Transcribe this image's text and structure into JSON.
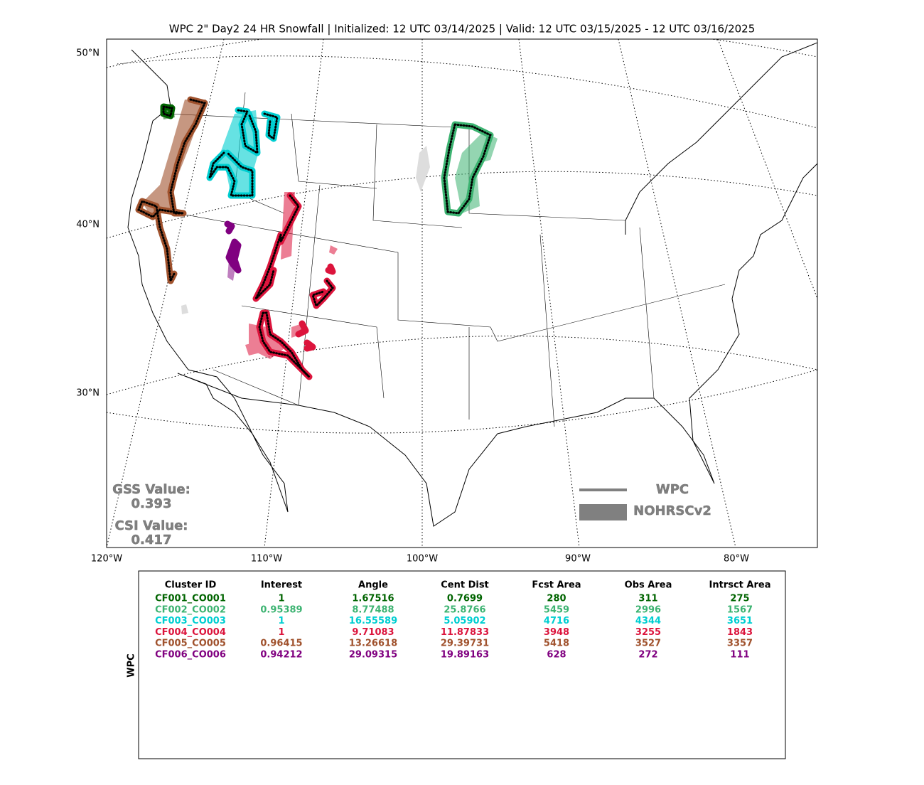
{
  "title": "WPC 2\" Day2 24 HR Snowfall | Initialized: 12 UTC 03/14/2025 | Valid: 12 UTC 03/15/2025 - 12 UTC 03/16/2025",
  "map": {
    "lat_labels": [
      "50°N",
      "40°N",
      "30°N"
    ],
    "lon_labels": [
      "120°W",
      "110°W",
      "100°W",
      "90°W",
      "80°W"
    ]
  },
  "scores": {
    "gss_label": "GSS Value:",
    "gss_value": "0.393",
    "csi_label": "CSI Value:",
    "csi_value": "0.417"
  },
  "legend": {
    "items": [
      "WPC",
      "NOHRSCv2"
    ]
  },
  "table": {
    "side_label": "WPC",
    "headers": [
      "Cluster ID",
      "Interest",
      "Angle",
      "Cent Dist",
      "Fcst Area",
      "Obs Area",
      "Intrsct Area"
    ],
    "rows": [
      {
        "color": "#006400",
        "cells": [
          "CF001_CO001",
          "1",
          "1.67516",
          "0.7699",
          "280",
          "311",
          "275"
        ]
      },
      {
        "color": "#3cb371",
        "cells": [
          "CF002_CO002",
          "0.95389",
          "8.77488",
          "25.8766",
          "5459",
          "2996",
          "1567"
        ]
      },
      {
        "color": "#00ced1",
        "cells": [
          "CF003_CO003",
          "1",
          "16.55589",
          "5.05902",
          "4716",
          "4344",
          "3651"
        ]
      },
      {
        "color": "#dc143c",
        "cells": [
          "CF004_CO004",
          "1",
          "9.71083",
          "11.87833",
          "3948",
          "3255",
          "1843"
        ]
      },
      {
        "color": "#a0522d",
        "cells": [
          "CF005_CO005",
          "0.96415",
          "13.26618",
          "29.39731",
          "5418",
          "3527",
          "3357"
        ]
      },
      {
        "color": "#800080",
        "cells": [
          "CF006_CO006",
          "0.94212",
          "29.09315",
          "19.89163",
          "628",
          "272",
          "111"
        ]
      }
    ]
  }
}
